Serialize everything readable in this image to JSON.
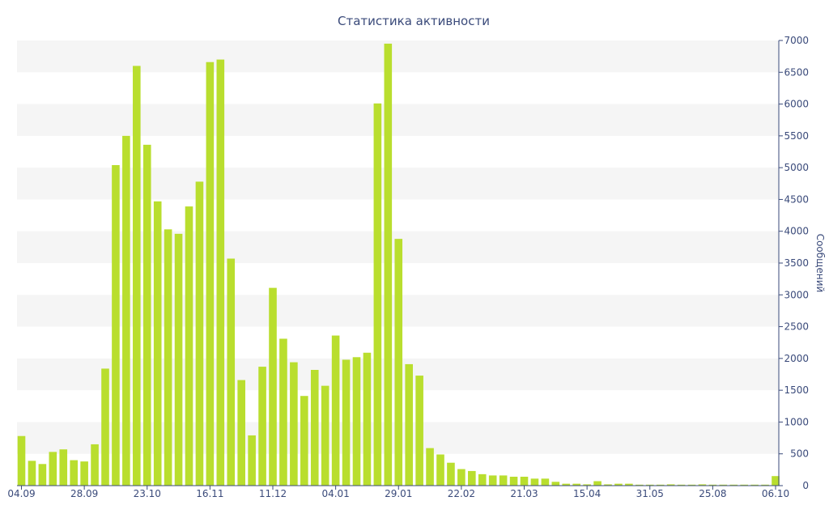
{
  "chart_data": {
    "type": "bar",
    "title": "Статистика активности",
    "ylabel": "Сообщений",
    "xlabel": "",
    "ylim": [
      0,
      7000
    ],
    "y_ticks": [
      0,
      500,
      1000,
      1500,
      2000,
      2500,
      3000,
      3500,
      4000,
      4500,
      5000,
      5500,
      6000,
      6500,
      7000
    ],
    "y_axis_side": "right",
    "x_ticks": [
      {
        "label": "04.09",
        "index": 0
      },
      {
        "label": "28.09",
        "index": 6
      },
      {
        "label": "23.10",
        "index": 12
      },
      {
        "label": "16.11",
        "index": 18
      },
      {
        "label": "11.12",
        "index": 24
      },
      {
        "label": "04.01",
        "index": 30
      },
      {
        "label": "29.01",
        "index": 36
      },
      {
        "label": "22.02",
        "index": 42
      },
      {
        "label": "21.03",
        "index": 48
      },
      {
        "label": "15.04",
        "index": 54
      },
      {
        "label": "31.05",
        "index": 60
      },
      {
        "label": "25.08",
        "index": 66
      },
      {
        "label": "06.10",
        "index": 72
      }
    ],
    "grid": "alternating horizontal bands",
    "colors": {
      "bar": "#b9de2e",
      "band": "#f5f5f5",
      "text": "#3a4a7a",
      "axis": "#3a4a7a"
    },
    "values": [
      780,
      390,
      340,
      530,
      570,
      400,
      380,
      650,
      1840,
      5040,
      5500,
      6600,
      5360,
      4470,
      4030,
      3960,
      4390,
      4780,
      6660,
      6700,
      3570,
      1660,
      790,
      1870,
      3110,
      2310,
      1940,
      1410,
      1820,
      1570,
      2360,
      1980,
      2020,
      2090,
      6010,
      6950,
      3880,
      1910,
      1730,
      590,
      490,
      360,
      260,
      230,
      180,
      160,
      160,
      140,
      140,
      110,
      110,
      60,
      30,
      30,
      20,
      70,
      20,
      30,
      30,
      15,
      15,
      15,
      20,
      15,
      15,
      20,
      15,
      15,
      15,
      15,
      15,
      15,
      150
    ]
  }
}
